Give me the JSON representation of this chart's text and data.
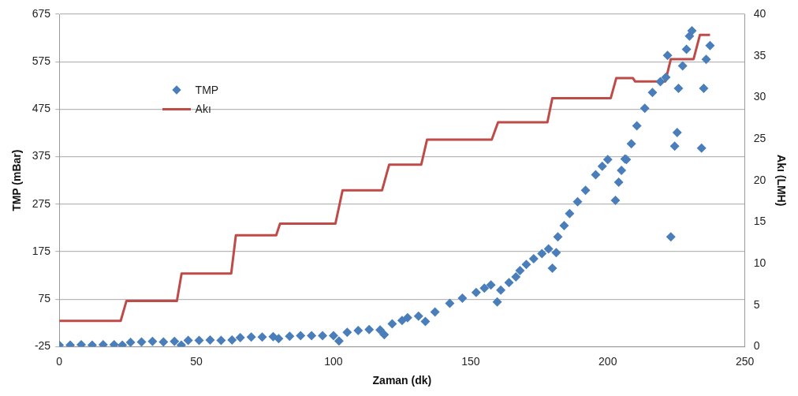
{
  "chart_data": {
    "type": "scatter",
    "xlabel": "Zaman (dk)",
    "ylabel": "TMP (mBar)",
    "y2label": "Akı (LMH)",
    "xlim": [
      0,
      250
    ],
    "xticks": [
      0,
      50,
      100,
      150,
      200,
      250
    ],
    "ylim": [
      -25,
      675
    ],
    "yticks": [
      -25,
      75,
      175,
      275,
      375,
      475,
      575,
      675
    ],
    "y2lim": [
      0,
      40
    ],
    "y2ticks": [
      0,
      5,
      10,
      15,
      20,
      25,
      30,
      35,
      40
    ],
    "grid": "y",
    "legend": "top left",
    "marker": "diamond",
    "series": [
      {
        "name": "TMP",
        "type": "scatter",
        "color": "#4a7ebb",
        "x": [
          0,
          4,
          8,
          12,
          16,
          20,
          23,
          26,
          30,
          34,
          38,
          42,
          44.5,
          47,
          51,
          55,
          59,
          63,
          66,
          70,
          74,
          78,
          80,
          84,
          88,
          92,
          96,
          100,
          102,
          105,
          109,
          113,
          117,
          118.5,
          121.4,
          125,
          127,
          131,
          133.5,
          137,
          142.4,
          147,
          152,
          155,
          157.4,
          159.7,
          161,
          164,
          166.5,
          168,
          170.3,
          173,
          176,
          178.4,
          179.8,
          181.2,
          181.8,
          184.1,
          186.1,
          189,
          191.9,
          195.6,
          198,
          200,
          202.8,
          204,
          205,
          206.3,
          206.8,
          208.6,
          210.6,
          213.5,
          216.3,
          219.2,
          221.2,
          221.8,
          223,
          224.4,
          225.3,
          225.8,
          227.3,
          228.7,
          229.8,
          230.7,
          234.2,
          235,
          235.9,
          237.3
        ],
        "values": [
          -22,
          -22,
          -21,
          -22,
          -21,
          -21,
          -22,
          -16,
          -15,
          -14,
          -15,
          -14,
          -22,
          -12,
          -12,
          -11,
          -12,
          -11,
          -6,
          -5,
          -5,
          -4,
          -8,
          -3,
          -2,
          -2,
          -2,
          -2,
          -13,
          5,
          9,
          11,
          10,
          0,
          23,
          30,
          36,
          39,
          28,
          48,
          66,
          77,
          89,
          98,
          105,
          69,
          94,
          110,
          122,
          135,
          148,
          160,
          171,
          181,
          140,
          173,
          206,
          230,
          255,
          280,
          304,
          337,
          355,
          369,
          283,
          321,
          346,
          370,
          369,
          402,
          440,
          477,
          510,
          533,
          542,
          588,
          206,
          397,
          426,
          519,
          566,
          601,
          629,
          640,
          393,
          519,
          580,
          609
        ]
      },
      {
        "name": "Akı",
        "type": "line",
        "axis": "y2",
        "color": "#be4b48",
        "marker": "none",
        "line_style": "solid",
        "x": [
          0,
          22.4,
          24.5,
          42.9,
          44.6,
          62.7,
          64.4,
          79.1,
          80.5,
          100.7,
          103.3,
          117.7,
          120.3,
          132,
          134.1,
          157.7,
          160,
          178,
          179.8,
          201.1,
          203.1,
          209.2,
          210,
          221,
          223,
          231.3,
          233.6,
          237.3
        ],
        "values": [
          3.1,
          3.1,
          5.5,
          5.5,
          8.8,
          8.8,
          13.4,
          13.4,
          14.8,
          14.8,
          18.8,
          18.8,
          21.9,
          21.9,
          24.9,
          24.9,
          27,
          27,
          29.9,
          29.9,
          32.3,
          32.3,
          31.9,
          31.9,
          34.6,
          34.6,
          37.5,
          37.5
        ]
      }
    ]
  }
}
